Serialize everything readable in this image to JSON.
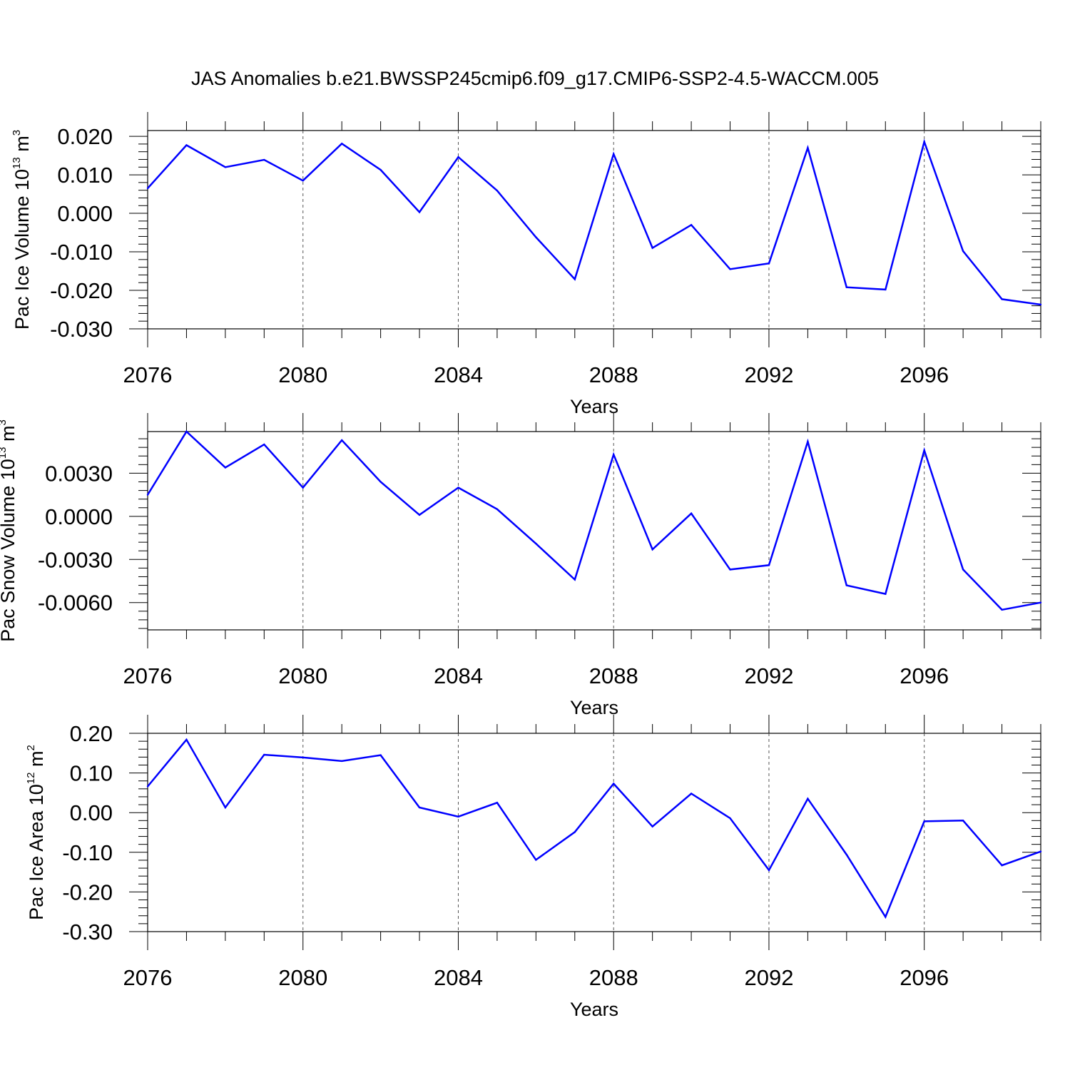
{
  "figure_title": "JAS Anomalies b.e21.BWSSP245cmip6.f09_g17.CMIP6-SSP2-4.5-WACCM.005",
  "colors": {
    "line": "#0000ff",
    "axis": "#000000",
    "grid": "#555555"
  },
  "chart_data": [
    {
      "type": "line",
      "ylabel_main": "Pac Ice Volume 10",
      "ylabel_exp": "13",
      "ylabel_unit": " m",
      "ylabel_unit_exp": "3",
      "xlabel": "Years",
      "xlim": [
        2076,
        2099
      ],
      "ylim": [
        -0.03,
        0.0215
      ],
      "yticks": [
        -0.03,
        -0.02,
        -0.01,
        0.0,
        0.01,
        0.02
      ],
      "ytick_labels": [
        "-0.030",
        "-0.020",
        "-0.010",
        "0.000",
        "0.010",
        "0.020"
      ],
      "xticks": [
        2076,
        2080,
        2084,
        2088,
        2092,
        2096
      ],
      "xtick_labels": [
        "2076",
        "2080",
        "2084",
        "2088",
        "2092",
        "2096"
      ],
      "x": [
        2076,
        2077,
        2078,
        2079,
        2080,
        2081,
        2082,
        2083,
        2084,
        2085,
        2086,
        2087,
        2088,
        2089,
        2090,
        2091,
        2092,
        2093,
        2094,
        2095,
        2096,
        2097,
        2098,
        2099
      ],
      "values": [
        0.0065,
        0.0177,
        0.012,
        0.0139,
        0.0085,
        0.0181,
        0.0113,
        0.0003,
        0.0146,
        0.0059,
        -0.0062,
        -0.0171,
        0.0154,
        -0.009,
        -0.003,
        -0.0145,
        -0.013,
        0.017,
        -0.0192,
        -0.0198,
        0.0186,
        -0.0098,
        -0.0223,
        -0.0237
      ]
    },
    {
      "type": "line",
      "ylabel_main": "Pac Snow Volume 10",
      "ylabel_exp": "13",
      "ylabel_unit": " m",
      "ylabel_unit_exp": "3",
      "xlabel": "Years",
      "xlim": [
        2076,
        2099
      ],
      "ylim": [
        -0.0079,
        0.0059
      ],
      "yticks": [
        -0.006,
        -0.003,
        0.0,
        0.003
      ],
      "ytick_labels": [
        "-0.0060",
        "-0.0030",
        "0.0000",
        "0.0030"
      ],
      "xticks": [
        2076,
        2080,
        2084,
        2088,
        2092,
        2096
      ],
      "xtick_labels": [
        "2076",
        "2080",
        "2084",
        "2088",
        "2092",
        "2096"
      ],
      "x": [
        2076,
        2077,
        2078,
        2079,
        2080,
        2081,
        2082,
        2083,
        2084,
        2085,
        2086,
        2087,
        2088,
        2089,
        2090,
        2091,
        2092,
        2093,
        2094,
        2095,
        2096,
        2097,
        2098,
        2099
      ],
      "values": [
        0.0015,
        0.0059,
        0.0034,
        0.005,
        0.002,
        0.0053,
        0.0024,
        0.0001,
        0.002,
        0.0005,
        -0.0019,
        -0.0044,
        0.0043,
        -0.0023,
        0.0002,
        -0.0037,
        -0.0034,
        0.0052,
        -0.0048,
        -0.0054,
        0.0046,
        -0.0037,
        -0.0065,
        -0.006
      ]
    },
    {
      "type": "line",
      "ylabel_main": "Pac Ice Area 10",
      "ylabel_exp": "12",
      "ylabel_unit": " m",
      "ylabel_unit_exp": "2",
      "xlabel": "Years",
      "xlim": [
        2076,
        2099
      ],
      "ylim": [
        -0.3,
        0.2
      ],
      "yticks": [
        -0.3,
        -0.2,
        -0.1,
        0.0,
        0.1,
        0.2
      ],
      "ytick_labels": [
        "-0.30",
        "-0.20",
        "-0.10",
        "0.00",
        "0.10",
        "0.20"
      ],
      "xticks": [
        2076,
        2080,
        2084,
        2088,
        2092,
        2096
      ],
      "xtick_labels": [
        "2076",
        "2080",
        "2084",
        "2088",
        "2092",
        "2096"
      ],
      "x": [
        2076,
        2077,
        2078,
        2079,
        2080,
        2081,
        2082,
        2083,
        2084,
        2085,
        2086,
        2087,
        2088,
        2089,
        2090,
        2091,
        2092,
        2093,
        2094,
        2095,
        2096,
        2097,
        2098,
        2099
      ],
      "values": [
        0.066,
        0.184,
        0.013,
        0.146,
        0.139,
        0.13,
        0.145,
        0.013,
        -0.01,
        0.025,
        -0.119,
        -0.049,
        0.073,
        -0.035,
        0.048,
        -0.014,
        -0.145,
        0.035,
        -0.106,
        -0.263,
        -0.022,
        -0.02,
        -0.133,
        -0.098
      ]
    }
  ]
}
